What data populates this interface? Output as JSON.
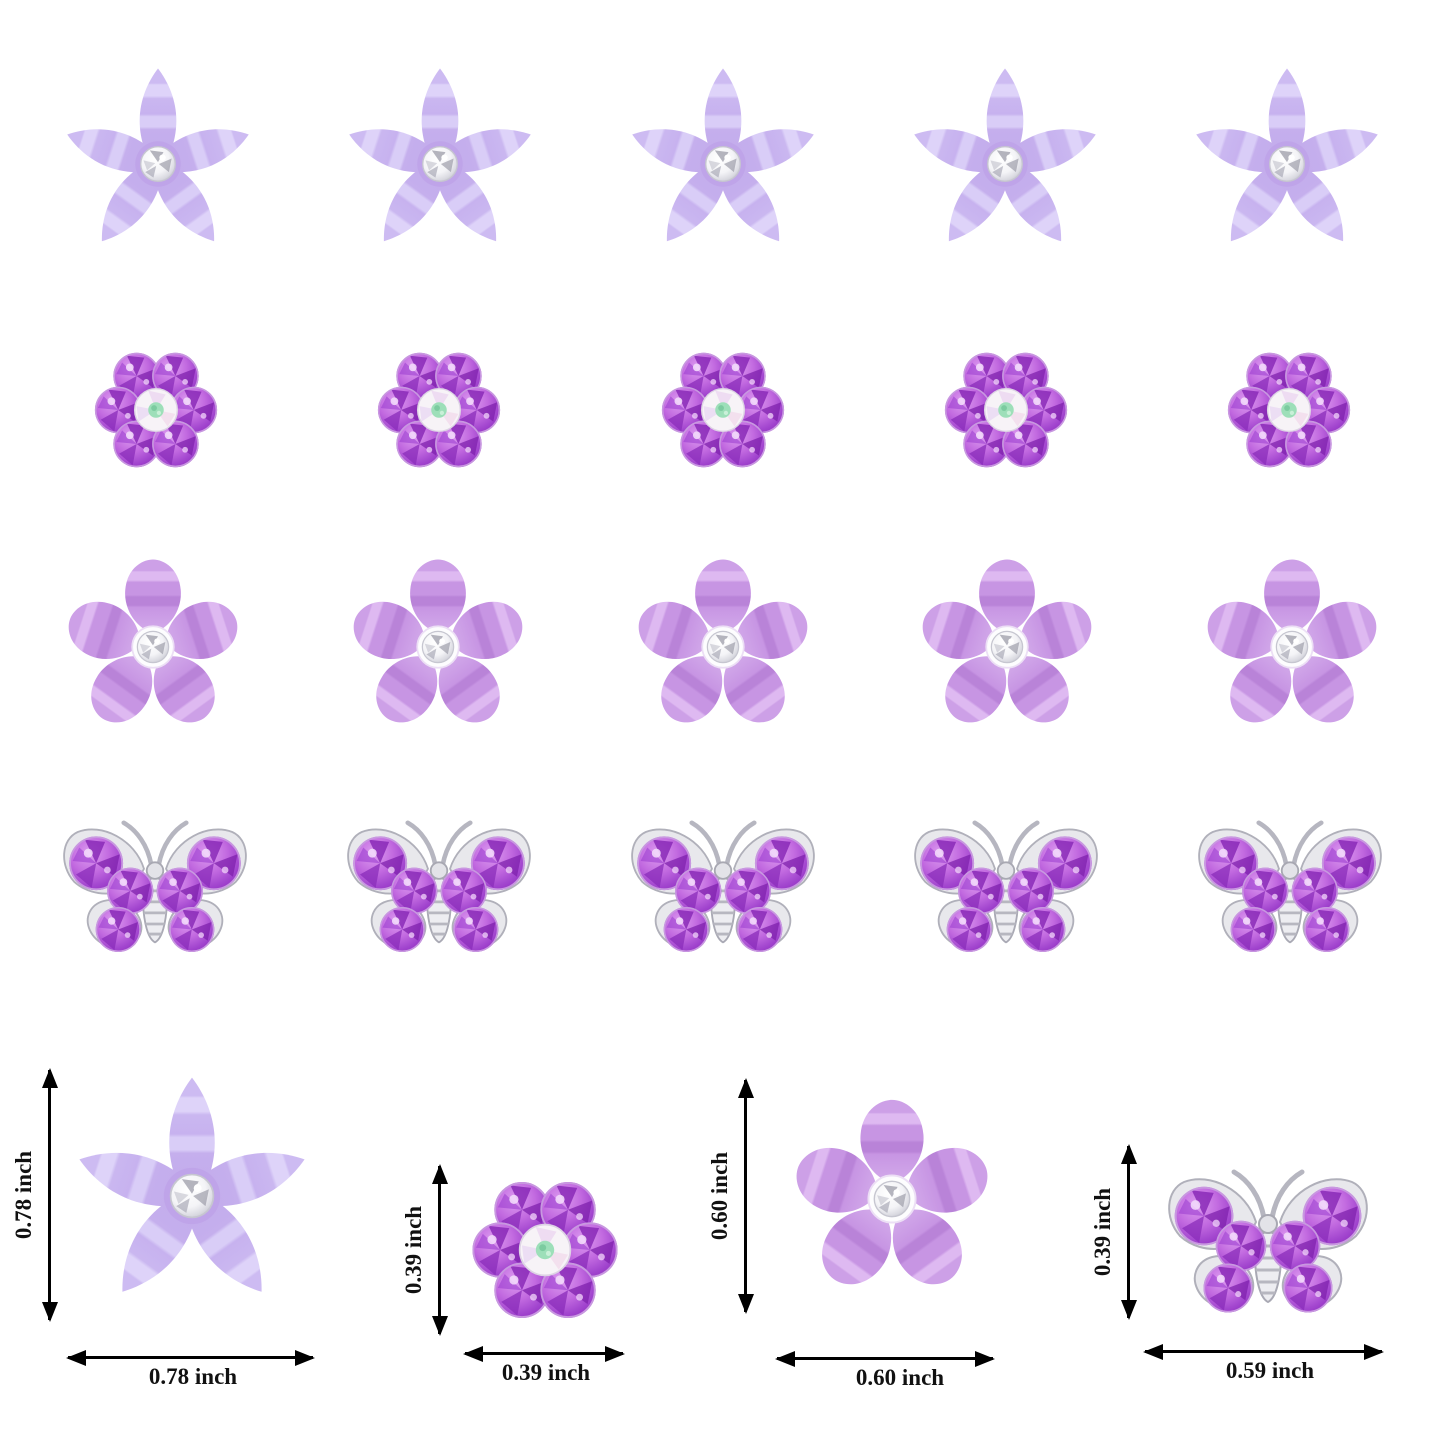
{
  "rows": [
    {
      "name": "large-acrylic-flower-charm",
      "symbol": "flowerStar",
      "count": 5
    },
    {
      "name": "rhinestone-gem-flower-charm",
      "symbol": "gemFlower",
      "count": 5
    },
    {
      "name": "round-petal-acrylic-flower-charm",
      "symbol": "flowerRound",
      "count": 5
    },
    {
      "name": "rhinestone-butterfly-charm",
      "symbol": "butterfly",
      "count": 5
    }
  ],
  "size_reference": [
    {
      "item": "large-acrylic-flower",
      "height_label": "0.78 inch",
      "width_label": "0.78 inch"
    },
    {
      "item": "rhinestone-gem-flower",
      "height_label": "0.39 inch",
      "width_label": "0.39 inch"
    },
    {
      "item": "round-petal-acrylic-flower",
      "height_label": "0.60 inch",
      "width_label": "0.60 inch"
    },
    {
      "item": "rhinestone-butterfly",
      "height_label": "0.39 inch",
      "width_label": "0.59 inch"
    }
  ],
  "colors": {
    "background": "#ffffff",
    "petal_lavender": "#cbb9f0",
    "petal_lavender_stripe": "#ded3f9",
    "petal_purple": "#c795e3",
    "petal_purple_stripe": "#deb9f1",
    "gem_purple": "#b05cd8",
    "gem_purple_dark": "#8a2bb8",
    "ab_gem_mint": "#9ddfb9",
    "silver": "#e8e8ec",
    "arrow": "#000000"
  }
}
